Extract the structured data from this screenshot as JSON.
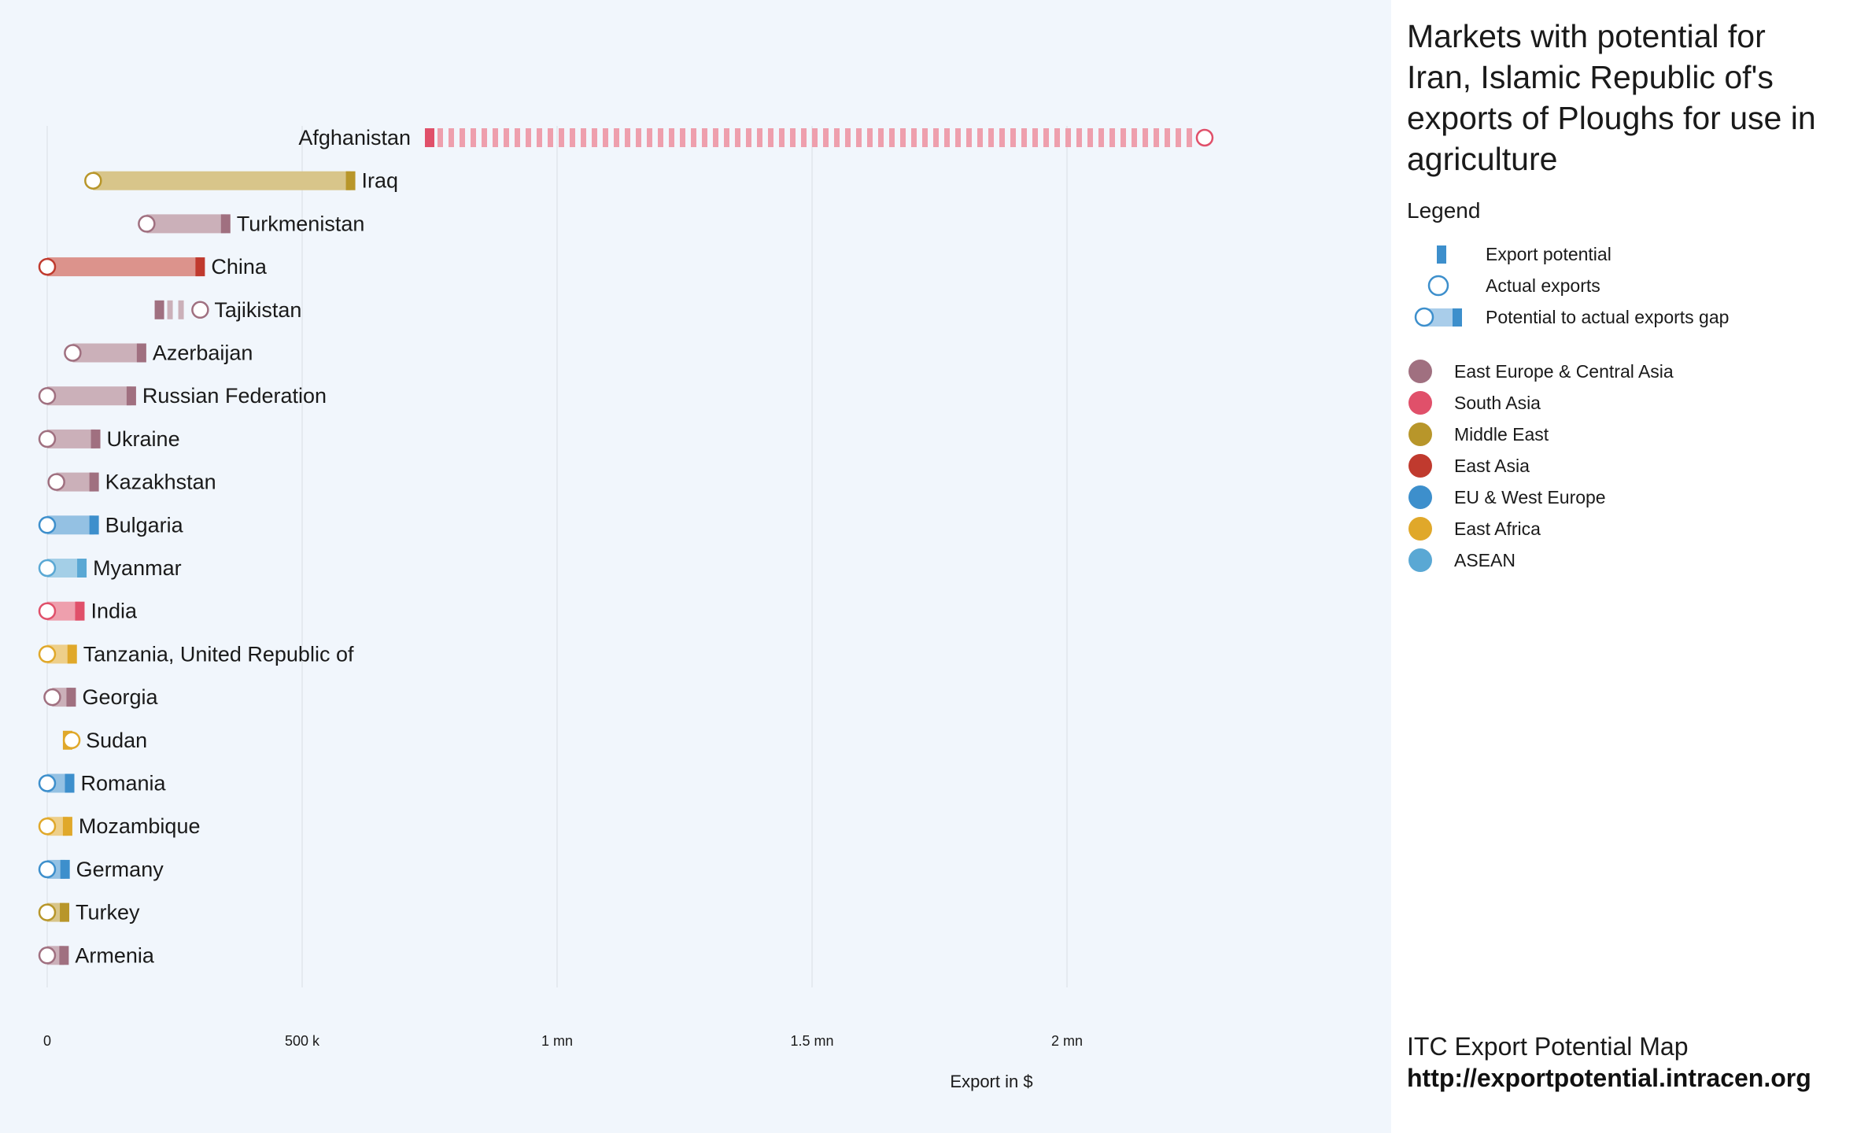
{
  "chart_data": {
    "type": "dumbbell",
    "title": "Markets with potential for Iran, Islamic Republic of's exports of Ploughs for use in agriculture",
    "xlabel": "Export in $",
    "xlim": [
      0,
      2500000
    ],
    "x_ticks": [
      {
        "value": 0,
        "label": "0"
      },
      {
        "value": 500000,
        "label": "500 k"
      },
      {
        "value": 1000000,
        "label": "1 mn"
      },
      {
        "value": 1500000,
        "label": "1.5 mn"
      },
      {
        "value": 2000000,
        "label": "2 mn"
      }
    ],
    "grid": true,
    "legend_title": "Legend",
    "legend_items": [
      {
        "symbol": "potential",
        "label": "Export potential"
      },
      {
        "symbol": "actual",
        "label": "Actual exports"
      },
      {
        "symbol": "gap",
        "label": "Potential to actual exports gap"
      }
    ],
    "regions": [
      {
        "name": "East Europe & Central Asia",
        "color": "#a07080"
      },
      {
        "name": "South Asia",
        "color": "#e0506a"
      },
      {
        "name": "Middle East",
        "color": "#b8962a"
      },
      {
        "name": "East Asia",
        "color": "#c03a2e"
      },
      {
        "name": "EU & West Europe",
        "color": "#3d8fcc"
      },
      {
        "name": "East Africa",
        "color": "#e0a82a"
      },
      {
        "name": "ASEAN",
        "color": "#5aa8d4"
      }
    ],
    "markets": [
      {
        "country": "Afghanistan",
        "region": "South Asia",
        "potential": 750000,
        "actual": 2270000
      },
      {
        "country": "Iraq",
        "region": "Middle East",
        "potential": 595000,
        "actual": 90000
      },
      {
        "country": "Turkmenistan",
        "region": "East Europe & Central Asia",
        "potential": 350000,
        "actual": 195000
      },
      {
        "country": "China",
        "region": "East Asia",
        "potential": 300000,
        "actual": 0
      },
      {
        "country": "Tajikistan",
        "region": "East Europe & Central Asia",
        "potential": 220000,
        "actual": 300000
      },
      {
        "country": "Azerbaijan",
        "region": "East Europe & Central Asia",
        "potential": 185000,
        "actual": 50000
      },
      {
        "country": "Russian Federation",
        "region": "East Europe & Central Asia",
        "potential": 165000,
        "actual": 0
      },
      {
        "country": "Ukraine",
        "region": "East Europe & Central Asia",
        "potential": 95000,
        "actual": 0
      },
      {
        "country": "Kazakhstan",
        "region": "East Europe & Central Asia",
        "potential": 92000,
        "actual": 18000
      },
      {
        "country": "Bulgaria",
        "region": "EU & West Europe",
        "potential": 92000,
        "actual": 0
      },
      {
        "country": "Myanmar",
        "region": "ASEAN",
        "potential": 68000,
        "actual": 0
      },
      {
        "country": "India",
        "region": "South Asia",
        "potential": 64000,
        "actual": 0
      },
      {
        "country": "Tanzania, United Republic of",
        "region": "East Africa",
        "potential": 49000,
        "actual": 0
      },
      {
        "country": "Georgia",
        "region": "East Europe & Central Asia",
        "potential": 47000,
        "actual": 10000
      },
      {
        "country": "Sudan",
        "region": "East Africa",
        "potential": 40000,
        "actual": 48000
      },
      {
        "country": "Romania",
        "region": "EU & West Europe",
        "potential": 44000,
        "actual": 0
      },
      {
        "country": "Mozambique",
        "region": "East Africa",
        "potential": 40000,
        "actual": 0
      },
      {
        "country": "Germany",
        "region": "EU & West Europe",
        "potential": 35000,
        "actual": 0
      },
      {
        "country": "Turkey",
        "region": "Middle East",
        "potential": 34000,
        "actual": 0
      },
      {
        "country": "Armenia",
        "region": "East Europe & Central Asia",
        "potential": 33000,
        "actual": 0
      }
    ]
  },
  "footer": {
    "name": "ITC Export Potential Map",
    "url": "http://exportpotential.intracen.org"
  }
}
